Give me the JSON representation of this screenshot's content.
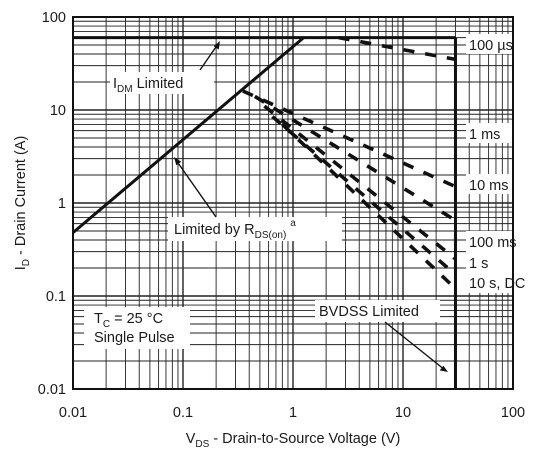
{
  "chart_data": {
    "type": "line",
    "title": "",
    "scale": {
      "x": "log",
      "y": "log"
    },
    "xlim": [
      0.01,
      100
    ],
    "ylim": [
      0.01,
      100
    ],
    "grid": true,
    "xlabel": {
      "main": "V",
      "sub": "DS",
      "rest": " - Drain-to-Source Voltage (V)"
    },
    "ylabel": {
      "main": "I",
      "sub": "D",
      "rest": " - Drain Current (A)"
    },
    "x_ticks": [
      {
        "v": 0.01,
        "label": "0.01"
      },
      {
        "v": 0.1,
        "label": "0.1"
      },
      {
        "v": 1,
        "label": "1"
      },
      {
        "v": 10,
        "label": "10"
      },
      {
        "v": 100,
        "label": "100"
      }
    ],
    "y_ticks": [
      {
        "v": 0.01,
        "label": "0.01"
      },
      {
        "v": 0.1,
        "label": "0.1"
      },
      {
        "v": 1,
        "label": "1"
      },
      {
        "v": 10,
        "label": "10"
      },
      {
        "v": 100,
        "label": "100"
      }
    ],
    "series": [
      {
        "label_key": "rds_limit",
        "style": "solid",
        "points": [
          [
            0.01,
            0.48
          ],
          [
            1.25,
            60
          ]
        ]
      },
      {
        "label_key": "idm_limit",
        "style": "solid",
        "points": [
          [
            0.01,
            60
          ],
          [
            30,
            60
          ]
        ]
      },
      {
        "label_key": "bvdss_limit",
        "style": "solid",
        "points": [
          [
            30,
            0.01
          ],
          [
            30,
            60
          ]
        ]
      },
      {
        "label_key": "p100us",
        "style": "dashed",
        "points": [
          [
            2.6,
            60
          ],
          [
            30,
            35
          ]
        ]
      },
      {
        "label_key": "p1ms",
        "style": "dashed",
        "points": [
          [
            0.35,
            16
          ],
          [
            30,
            1.5
          ]
        ]
      },
      {
        "label_key": "p10ms",
        "style": "dashed",
        "points": [
          [
            0.45,
            14
          ],
          [
            30,
            0.65
          ]
        ]
      },
      {
        "label_key": "p100ms",
        "style": "dashed",
        "points": [
          [
            0.55,
            11
          ],
          [
            30,
            0.25
          ]
        ]
      },
      {
        "label_key": "p1s",
        "style": "dashed",
        "points": [
          [
            0.65,
            8.5
          ],
          [
            30,
            0.17
          ]
        ]
      },
      {
        "label_key": "p10sdc",
        "style": "dashed",
        "points": [
          [
            0.8,
            7
          ],
          [
            30,
            0.12
          ]
        ]
      }
    ],
    "curve_labels": {
      "p100us": "100 µs",
      "p1ms": "1 ms",
      "p10ms": "10 ms",
      "p100ms": "100 ms",
      "p1s": "1 s",
      "p10sdc": "10 s, DC"
    },
    "annotations": {
      "idm": {
        "main": "I",
        "sub": "DM",
        "rest": " Limited"
      },
      "rds": {
        "main": "Limited by R",
        "sub": "DS(on)",
        "sup": "a"
      },
      "bvdss": {
        "text": "BVDSS Limited"
      },
      "tc": {
        "main": "T",
        "sub": "C",
        "rest": " = 25 °C"
      },
      "pulse": {
        "text": "Single Pulse"
      }
    }
  }
}
